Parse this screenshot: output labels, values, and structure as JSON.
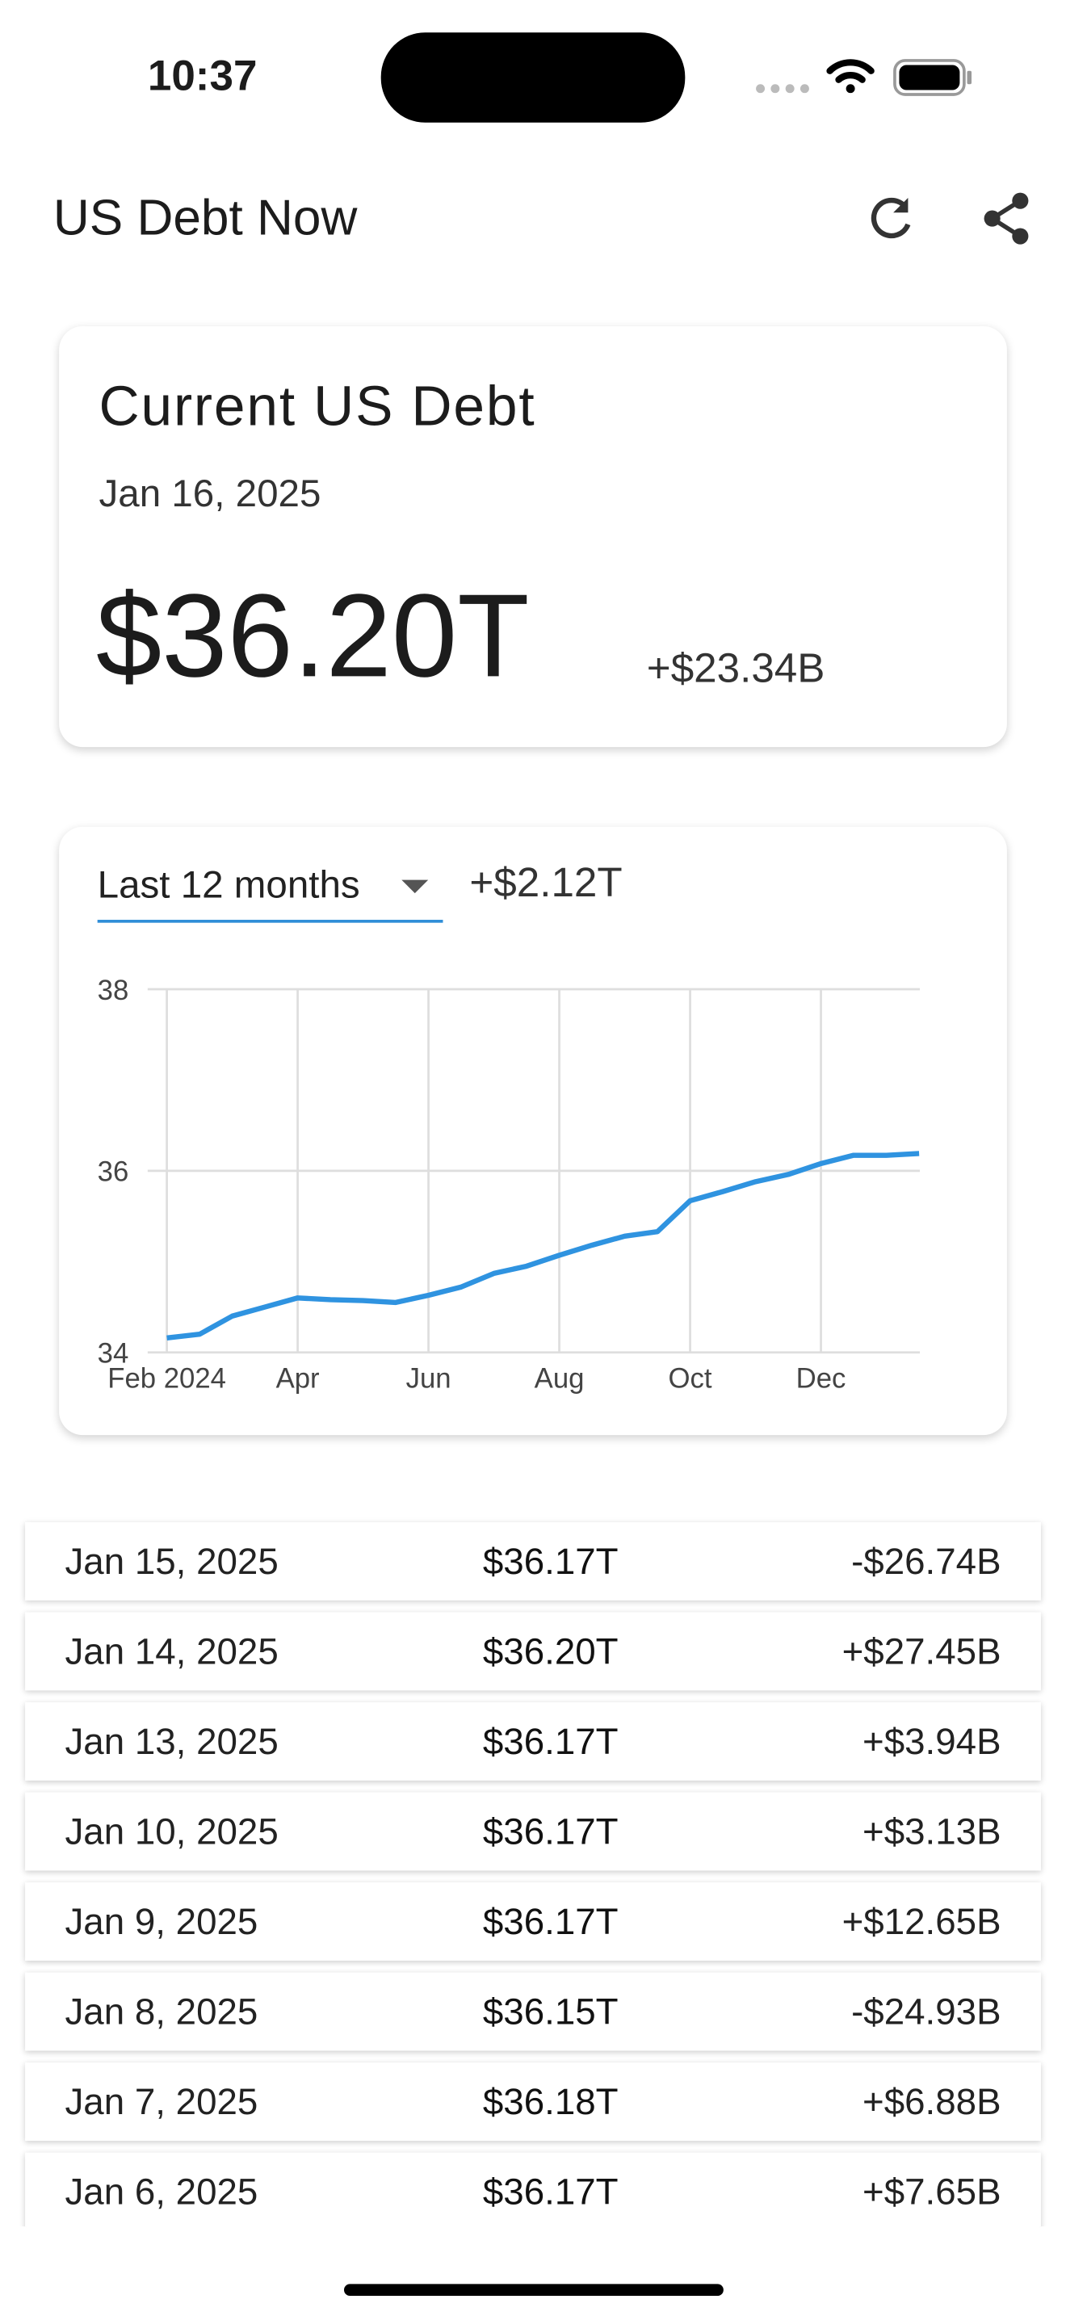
{
  "status_bar": {
    "time": "10:37"
  },
  "app_bar": {
    "title": "US Debt Now"
  },
  "current_card": {
    "title": "Current US Debt",
    "date": "Jan 16, 2025",
    "amount": "$36.20T",
    "change": "+$23.34B"
  },
  "chart_card": {
    "period": "Last 12 months",
    "change": "+$2.12T"
  },
  "chart_data": {
    "type": "line",
    "categories": [
      "Feb 2024",
      null,
      null,
      null,
      "Apr",
      null,
      null,
      null,
      "Jun",
      null,
      null,
      null,
      "Aug",
      null,
      null,
      null,
      "Oct",
      null,
      null,
      null,
      "Dec",
      null,
      null,
      null
    ],
    "values": [
      34.16,
      34.2,
      34.4,
      34.5,
      34.6,
      34.58,
      34.57,
      34.55,
      34.63,
      34.72,
      34.87,
      34.95,
      35.07,
      35.18,
      35.28,
      35.33,
      35.67,
      35.77,
      35.88,
      35.96,
      36.08,
      36.17,
      36.17,
      36.19
    ],
    "color": "#2f93e0",
    "ylim": [
      34,
      38
    ],
    "yticks": [
      34,
      36,
      38
    ],
    "grid": true
  },
  "history": {
    "rows": [
      [
        "Jan 15, 2025",
        "$36.17T",
        "-$26.74B"
      ],
      [
        "Jan 14, 2025",
        "$36.20T",
        "+$27.45B"
      ],
      [
        "Jan 13, 2025",
        "$36.17T",
        "+$3.94B"
      ],
      [
        "Jan 10, 2025",
        "$36.17T",
        "+$3.13B"
      ],
      [
        "Jan 9, 2025",
        "$36.17T",
        "+$12.65B"
      ],
      [
        "Jan 8, 2025",
        "$36.15T",
        "-$24.93B"
      ],
      [
        "Jan 7, 2025",
        "$36.18T",
        "+$6.88B"
      ],
      [
        "Jan 6, 2025",
        "$36.17T",
        "+$7.65B"
      ]
    ]
  }
}
